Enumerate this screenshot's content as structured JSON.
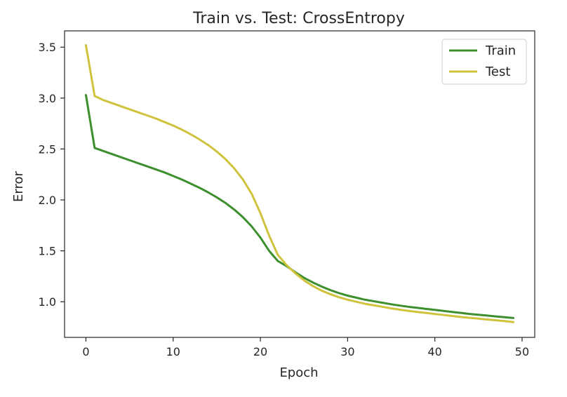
{
  "chart_data": {
    "type": "line",
    "title": "Train vs. Test: CrossEntropy",
    "xlabel": "Epoch",
    "ylabel": "Error",
    "xlim": [
      -2.45,
      51.45
    ],
    "ylim": [
      0.65,
      3.66
    ],
    "xticks": [
      0,
      10,
      20,
      30,
      40,
      50
    ],
    "xtick_labels": [
      "0",
      "10",
      "20",
      "30",
      "40",
      "50"
    ],
    "yticks": [
      1.0,
      1.5,
      2.0,
      2.5,
      3.0,
      3.5
    ],
    "ytick_labels": [
      "1.0",
      "1.5",
      "2.0",
      "2.5",
      "3.0",
      "3.5"
    ],
    "grid": false,
    "legend_position": "top-right",
    "x": [
      0,
      1,
      2,
      3,
      4,
      5,
      6,
      7,
      8,
      9,
      10,
      11,
      12,
      13,
      14,
      15,
      16,
      17,
      18,
      19,
      20,
      21,
      22,
      23,
      24,
      25,
      26,
      27,
      28,
      29,
      30,
      31,
      32,
      33,
      34,
      35,
      36,
      37,
      38,
      39,
      40,
      41,
      42,
      43,
      44,
      45,
      46,
      47,
      48,
      49
    ],
    "series": [
      {
        "name": "Train",
        "color": "#3d8f2e",
        "values": [
          3.03,
          2.51,
          2.48,
          2.45,
          2.42,
          2.39,
          2.36,
          2.33,
          2.3,
          2.27,
          2.235,
          2.2,
          2.16,
          2.12,
          2.075,
          2.025,
          1.97,
          1.905,
          1.83,
          1.74,
          1.63,
          1.5,
          1.4,
          1.35,
          1.29,
          1.235,
          1.19,
          1.15,
          1.115,
          1.085,
          1.06,
          1.04,
          1.02,
          1.005,
          0.99,
          0.975,
          0.962,
          0.95,
          0.94,
          0.93,
          0.92,
          0.91,
          0.9,
          0.89,
          0.88,
          0.872,
          0.864,
          0.856,
          0.848,
          0.84
        ]
      },
      {
        "name": "Test",
        "color": "#cfc33d",
        "values": [
          3.52,
          3.02,
          2.98,
          2.95,
          2.92,
          2.89,
          2.86,
          2.83,
          2.8,
          2.765,
          2.73,
          2.69,
          2.645,
          2.595,
          2.54,
          2.475,
          2.4,
          2.31,
          2.2,
          2.06,
          1.87,
          1.65,
          1.46,
          1.36,
          1.28,
          1.21,
          1.155,
          1.11,
          1.075,
          1.045,
          1.02,
          1.0,
          0.98,
          0.965,
          0.95,
          0.935,
          0.922,
          0.91,
          0.9,
          0.89,
          0.88,
          0.87,
          0.86,
          0.85,
          0.842,
          0.834,
          0.826,
          0.818,
          0.81,
          0.8
        ]
      }
    ]
  }
}
